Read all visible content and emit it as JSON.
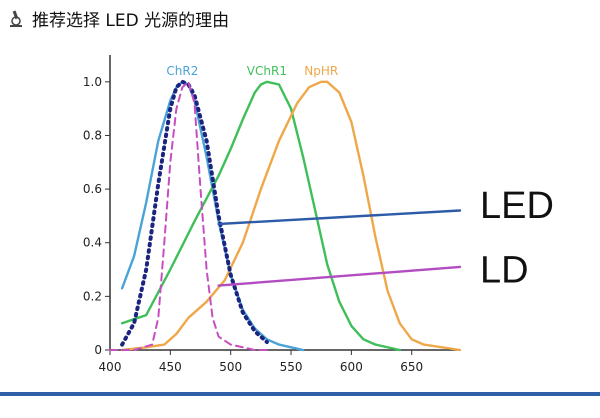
{
  "header": {
    "title": "推荐选择 LED 光源的理由",
    "icon": "microscope-icon"
  },
  "chart_data": {
    "type": "line",
    "title": "",
    "xlabel": "",
    "ylabel": "",
    "xlim": [
      400,
      690
    ],
    "ylim": [
      0,
      1.1
    ],
    "xticks": [
      "400",
      "450",
      "500",
      "550",
      "600",
      "650"
    ],
    "yticks": [
      "0",
      "0.2",
      "0.4",
      "0.6",
      "0.8",
      "1.0"
    ],
    "grid": false,
    "series": [
      {
        "name": "ChR2",
        "color": "#4aa3d8",
        "style": "solid",
        "x": [
          410,
          420,
          430,
          440,
          450,
          455,
          460,
          465,
          470,
          480,
          490,
          500,
          510,
          520,
          530,
          540,
          550,
          560
        ],
        "y": [
          0.23,
          0.35,
          0.55,
          0.78,
          0.93,
          0.98,
          1.0,
          0.99,
          0.93,
          0.72,
          0.48,
          0.28,
          0.15,
          0.08,
          0.04,
          0.02,
          0.01,
          0.0
        ]
      },
      {
        "name": "VChR1",
        "color": "#3fbf5a",
        "style": "solid",
        "x": [
          410,
          430,
          450,
          470,
          490,
          500,
          510,
          520,
          525,
          530,
          540,
          550,
          560,
          570,
          580,
          590,
          600,
          610,
          620,
          640
        ],
        "y": [
          0.1,
          0.13,
          0.3,
          0.48,
          0.65,
          0.75,
          0.86,
          0.96,
          0.99,
          1.0,
          0.99,
          0.9,
          0.72,
          0.52,
          0.32,
          0.18,
          0.09,
          0.04,
          0.02,
          0.0
        ]
      },
      {
        "name": "NpHR",
        "color": "#eea84a",
        "style": "solid",
        "x": [
          410,
          430,
          445,
          455,
          465,
          480,
          495,
          510,
          525,
          540,
          555,
          565,
          575,
          580,
          590,
          600,
          610,
          620,
          630,
          640,
          650,
          660,
          690
        ],
        "y": [
          0.0,
          0.01,
          0.02,
          0.06,
          0.12,
          0.18,
          0.26,
          0.4,
          0.6,
          0.78,
          0.92,
          0.98,
          1.0,
          1.0,
          0.96,
          0.85,
          0.65,
          0.42,
          0.22,
          0.1,
          0.04,
          0.02,
          0.0
        ]
      },
      {
        "name": "",
        "color": "#1b2580",
        "style": "dotted",
        "x": [
          410,
          420,
          430,
          440,
          450,
          455,
          460,
          465,
          470,
          480,
          490,
          500,
          510,
          520,
          530
        ],
        "y": [
          0.02,
          0.1,
          0.3,
          0.62,
          0.9,
          0.98,
          1.0,
          0.99,
          0.95,
          0.78,
          0.5,
          0.28,
          0.14,
          0.07,
          0.03
        ]
      },
      {
        "name": "",
        "color": "#c64fc0",
        "style": "dashed",
        "x": [
          400,
          420,
          435,
          440,
          445,
          450,
          455,
          460,
          465,
          470,
          475,
          480,
          485,
          490,
          500,
          510,
          520,
          530
        ],
        "y": [
          0.0,
          0.0,
          0.02,
          0.12,
          0.4,
          0.7,
          0.9,
          0.98,
          1.0,
          0.92,
          0.6,
          0.3,
          0.12,
          0.05,
          0.02,
          0.01,
          0.0,
          0.0
        ]
      },
      {
        "name": "",
        "color": "#2e5ba8",
        "style": "solid",
        "x": [
          490,
          690
        ],
        "y": [
          0.47,
          0.52
        ]
      },
      {
        "name": "",
        "color": "#b24cc1",
        "style": "solid",
        "x": [
          490,
          690
        ],
        "y": [
          0.24,
          0.31
        ]
      }
    ],
    "annotations": [
      {
        "text": "LED",
        "x": 690,
        "y": 0.54
      },
      {
        "text": "LD",
        "x": 690,
        "y": 0.3
      }
    ]
  }
}
